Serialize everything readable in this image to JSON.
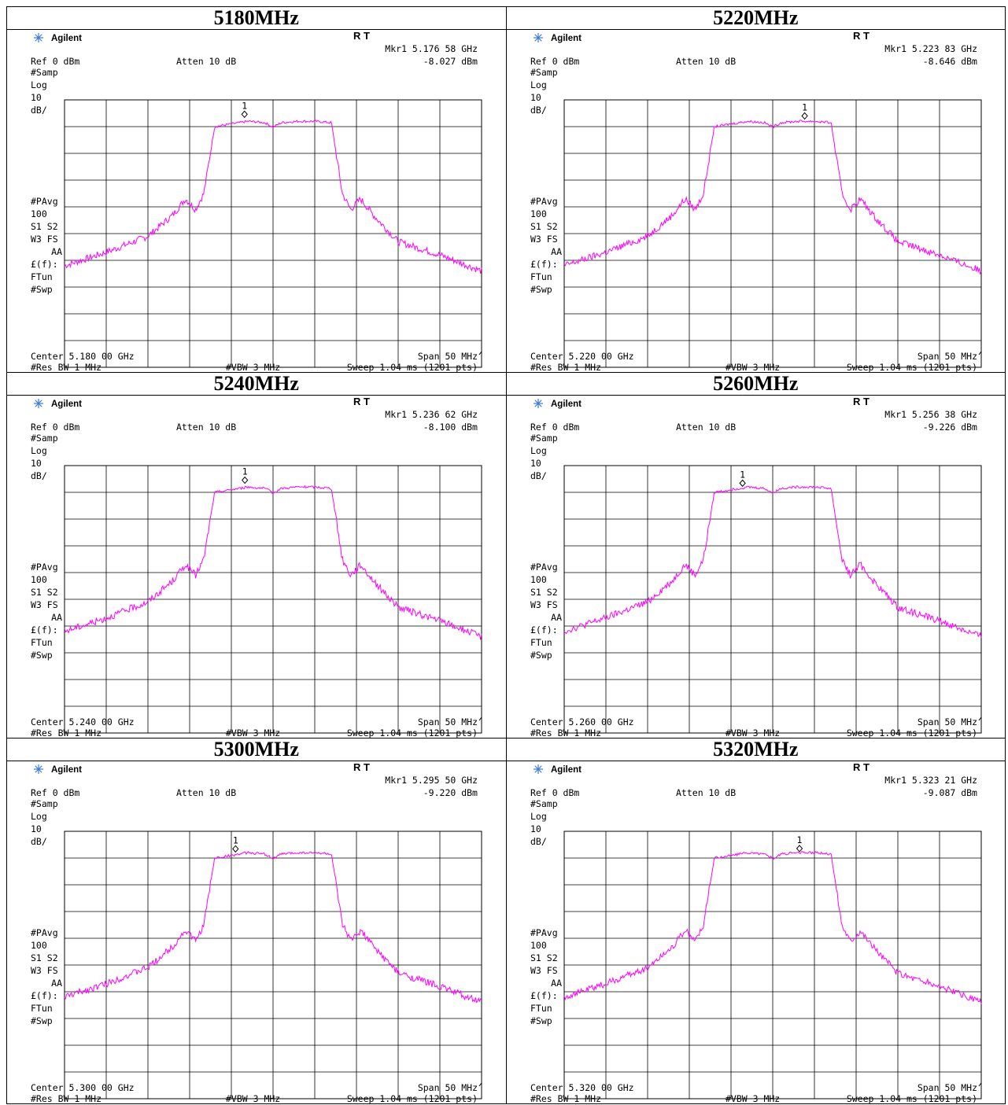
{
  "colors": {
    "trace": "#ff00ff",
    "grid": "#000000",
    "background": "#ffffff"
  },
  "analyzer_labels": {
    "brand": "Agilent",
    "brand_icon": "agilent-spark-icon",
    "status": "R  T",
    "ref": "Ref 0 dBm",
    "atten": "Atten 10 dB",
    "left_panel_top": [
      "#Samp",
      "Log",
      "10",
      "dB/"
    ],
    "left_panel_bottom": [
      "#PAvg",
      "100",
      "S1  S2",
      "W3  FS",
      "AA",
      "£(f):",
      "FTun",
      "#Swp"
    ],
    "span": "Span 50 MHz",
    "res_bw": "#Res BW 1 MHz",
    "vbw": "#VBW 3 MHz",
    "sweep": "Sweep 1.04 ms (1201 pts)",
    "marker_label": "1"
  },
  "panels": [
    {
      "title": "5180MHz",
      "mkr": "Mkr1  5.176 58 GHz",
      "mkr_level": "-8.027 dBm",
      "center": "Center 5.180 00 GHz"
    },
    {
      "title": "5220MHz",
      "mkr": "Mkr1  5.223 83 GHz",
      "mkr_level": "-8.646 dBm",
      "center": "Center 5.220 00 GHz"
    },
    {
      "title": "5240MHz",
      "mkr": "Mkr1  5.236 62 GHz",
      "mkr_level": "-8.100 dBm",
      "center": "Center 5.240 00 GHz"
    },
    {
      "title": "5260MHz",
      "mkr": "Mkr1  5.256 38 GHz",
      "mkr_level": "-9.226 dBm",
      "center": "Center 5.260 00 GHz"
    },
    {
      "title": "5300MHz",
      "mkr": "Mkr1  5.295 50 GHz",
      "mkr_level": "-9.220 dBm",
      "center": "Center 5.300 00 GHz"
    },
    {
      "title": "5320MHz",
      "mkr": "Mkr1  5.323 21 GHz",
      "mkr_level": "-9.087 dBm",
      "center": "Center 5.320 00 GHz"
    }
  ],
  "chart_data": [
    {
      "type": "line",
      "title": "5180MHz",
      "x_units": "MHz offset from center",
      "xlim": [
        -25,
        25
      ],
      "ylim": [
        -100,
        0
      ],
      "grid": true,
      "marker": {
        "x": -3.42,
        "y": -8.027
      },
      "series": [
        {
          "x": [
            -25,
            -20,
            -15,
            -12,
            -10.5,
            -9.3,
            -8.3,
            -7,
            -5,
            -3,
            -1,
            0,
            1,
            3,
            5,
            7,
            8.3,
            9.3,
            10.5,
            12,
            15,
            20,
            25
          ],
          "y": [
            -62,
            -57,
            -51,
            -43,
            -37,
            -41,
            -35,
            -10,
            -9,
            -8,
            -8.5,
            -10.2,
            -8.5,
            -8,
            -8,
            -8.5,
            -35,
            -41,
            -37,
            -43,
            -53,
            -58,
            -64
          ]
        }
      ]
    },
    {
      "type": "line",
      "title": "5220MHz",
      "x_units": "MHz offset from center",
      "xlim": [
        -25,
        25
      ],
      "ylim": [
        -100,
        0
      ],
      "grid": true,
      "marker": {
        "x": 3.83,
        "y": -8.646
      },
      "series": [
        {
          "x": [
            -25,
            -20,
            -15,
            -12,
            -10.5,
            -9.3,
            -8.3,
            -7,
            -5,
            -3,
            -1,
            0,
            1,
            3,
            5,
            7,
            8.3,
            9.3,
            10.5,
            12,
            15,
            20,
            25
          ],
          "y": [
            -62,
            -57,
            -51,
            -43,
            -37,
            -41,
            -35,
            -10,
            -9,
            -8,
            -8.5,
            -10.2,
            -8.5,
            -8,
            -8,
            -8.5,
            -35,
            -41,
            -37,
            -43,
            -53,
            -58,
            -64
          ]
        }
      ]
    },
    {
      "type": "line",
      "title": "5240MHz",
      "x_units": "MHz offset from center",
      "xlim": [
        -25,
        25
      ],
      "ylim": [
        -100,
        0
      ],
      "grid": true,
      "marker": {
        "x": -3.38,
        "y": -8.1
      },
      "series": [
        {
          "x": [
            -25,
            -20,
            -15,
            -12,
            -10.5,
            -9.3,
            -8.3,
            -7,
            -5,
            -3,
            -1,
            0,
            1,
            3,
            5,
            7,
            8.3,
            9.3,
            10.5,
            12,
            15,
            20,
            25
          ],
          "y": [
            -62,
            -57,
            -51,
            -43,
            -37,
            -41,
            -35,
            -10,
            -9,
            -8,
            -8.5,
            -10.2,
            -8.5,
            -8,
            -8,
            -8.5,
            -35,
            -41,
            -37,
            -43,
            -53,
            -58,
            -64
          ]
        }
      ]
    },
    {
      "type": "line",
      "title": "5260MHz",
      "x_units": "MHz offset from center",
      "xlim": [
        -25,
        25
      ],
      "ylim": [
        -100,
        0
      ],
      "grid": true,
      "marker": {
        "x": -3.62,
        "y": -9.226
      },
      "series": [
        {
          "x": [
            -25,
            -20,
            -15,
            -12,
            -10.5,
            -9.3,
            -8.3,
            -7,
            -5,
            -3,
            -1,
            0,
            1,
            3,
            5,
            7,
            8.3,
            9.3,
            10.5,
            12,
            15,
            20,
            25
          ],
          "y": [
            -62,
            -57,
            -51,
            -43,
            -37,
            -41,
            -35,
            -10,
            -9,
            -8,
            -8.5,
            -10.2,
            -8.5,
            -8,
            -8,
            -8.5,
            -35,
            -41,
            -37,
            -43,
            -53,
            -58,
            -64
          ]
        }
      ]
    },
    {
      "type": "line",
      "title": "5300MHz",
      "x_units": "MHz offset from center",
      "xlim": [
        -25,
        25
      ],
      "ylim": [
        -100,
        0
      ],
      "grid": true,
      "marker": {
        "x": -4.5,
        "y": -9.22
      },
      "series": [
        {
          "x": [
            -25,
            -20,
            -15,
            -12,
            -10.5,
            -9.3,
            -8.3,
            -7,
            -5,
            -3,
            -1,
            0,
            1,
            3,
            5,
            7,
            8.3,
            9.3,
            10.5,
            12,
            15,
            20,
            25
          ],
          "y": [
            -62,
            -57,
            -51,
            -43,
            -37,
            -41,
            -35,
            -10,
            -9,
            -8,
            -8.5,
            -10.2,
            -8.5,
            -8,
            -8,
            -8.5,
            -35,
            -41,
            -37,
            -43,
            -53,
            -58,
            -64
          ]
        }
      ]
    },
    {
      "type": "line",
      "title": "5320MHz",
      "x_units": "MHz offset from center",
      "xlim": [
        -25,
        25
      ],
      "ylim": [
        -100,
        0
      ],
      "grid": true,
      "marker": {
        "x": 3.21,
        "y": -9.087
      },
      "series": [
        {
          "x": [
            -25,
            -20,
            -15,
            -12,
            -10.5,
            -9.3,
            -8.3,
            -7,
            -5,
            -3,
            -1,
            0,
            1,
            3,
            5,
            7,
            8.3,
            9.3,
            10.5,
            12,
            15,
            20,
            25
          ],
          "y": [
            -62,
            -57,
            -51,
            -43,
            -37,
            -41,
            -35,
            -10,
            -9,
            -8,
            -8.5,
            -10.2,
            -8.5,
            -8,
            -8,
            -8.5,
            -35,
            -41,
            -37,
            -43,
            -53,
            -58,
            -64
          ]
        }
      ]
    }
  ]
}
